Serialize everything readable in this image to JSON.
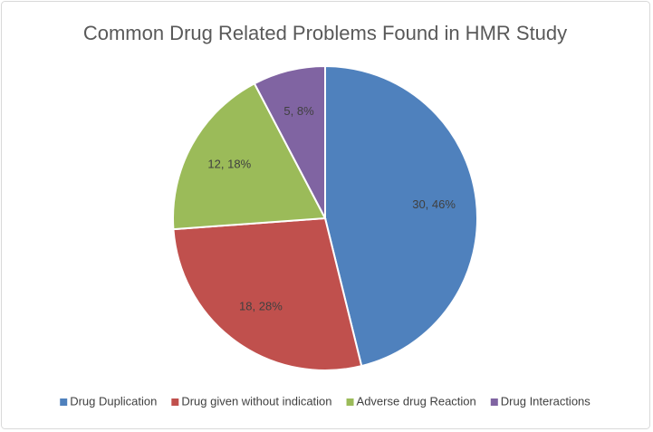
{
  "chart_data": {
    "type": "pie",
    "title": "Common Drug Related Problems Found in HMR Study",
    "categories": [
      "Drug Duplication",
      "Drug given without indication",
      "Adverse drug Reaction",
      "Drug Interactions"
    ],
    "values": [
      30,
      18,
      12,
      5
    ],
    "value_labels": [
      "30, 46%",
      "18, 28%",
      "12, 18%",
      "5, 8%"
    ],
    "colors": [
      "#4f81bd",
      "#c0504d",
      "#9bbb59",
      "#8064a2"
    ],
    "legend": "bottom"
  }
}
